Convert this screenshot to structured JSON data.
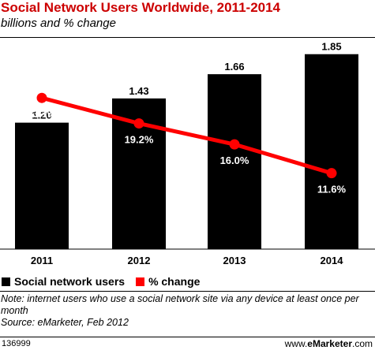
{
  "chart_data": {
    "type": "bar",
    "title": "Social Network Users Worldwide, 2011-2014",
    "subtitle": "billions and % change",
    "categories": [
      "2011",
      "2012",
      "2013",
      "2014"
    ],
    "series": [
      {
        "name": "Social network users",
        "type": "bar",
        "values": [
          1.2,
          1.43,
          1.66,
          1.85
        ],
        "labels": [
          "1.20",
          "1.43",
          "1.66",
          "1.85"
        ],
        "color": "#000000"
      },
      {
        "name": "% change",
        "type": "line",
        "values": [
          23.1,
          19.2,
          16.0,
          11.6
        ],
        "labels": [
          "23.1%",
          "19.2%",
          "16.0%",
          "11.6%"
        ],
        "color": "#ff0000"
      }
    ],
    "ylim": [
      0,
      2.05
    ],
    "line_ylim": [
      0,
      33
    ],
    "grid": false,
    "legend_position": "bottom-left"
  },
  "note": "Note: internet users who use a social network site via any device at least once per month",
  "source": "Source: eMarketer, Feb 2012",
  "footer": {
    "id": "136999",
    "brand_prefix": "www.",
    "brand_name": "eMarketer",
    "brand_suffix": ".com"
  }
}
